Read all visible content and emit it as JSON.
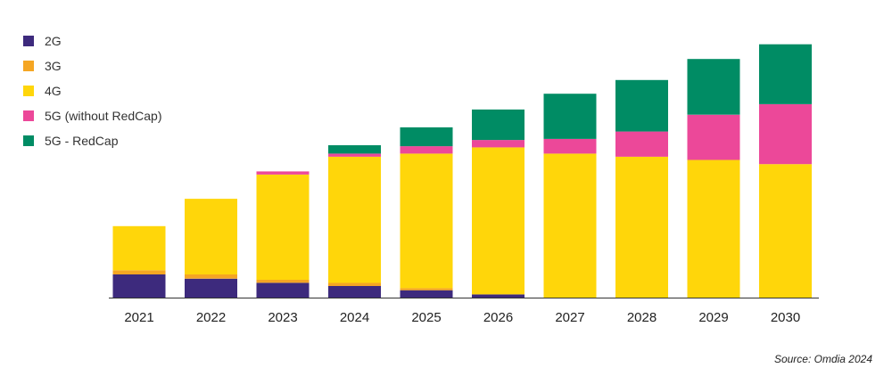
{
  "chart_data": {
    "type": "bar",
    "stacked": true,
    "categories": [
      "2021",
      "2022",
      "2023",
      "2024",
      "2025",
      "2026",
      "2027",
      "2028",
      "2029",
      "2030"
    ],
    "series": [
      {
        "name": "2G",
        "color": "#3d2a7d",
        "values": [
          22,
          18,
          14,
          11,
          7,
          3,
          0,
          0,
          0,
          0
        ]
      },
      {
        "name": "3G",
        "color": "#f5a623",
        "values": [
          4,
          4,
          3,
          3,
          2,
          0,
          0,
          0,
          0,
          0
        ]
      },
      {
        "name": "4G",
        "color": "#ffd60a",
        "values": [
          42,
          72,
          100,
          120,
          128,
          140,
          137,
          134,
          131,
          127
        ]
      },
      {
        "name": "5G (without RedCap)",
        "color": "#ec4899",
        "values": [
          0,
          0,
          3,
          3,
          7,
          7,
          14,
          24,
          43,
          57
        ]
      },
      {
        "name": "5G - RedCap",
        "color": "#008c64",
        "values": [
          0,
          0,
          0,
          8,
          18,
          29,
          43,
          49,
          53,
          57
        ]
      }
    ],
    "ylim": [
      0,
      245
    ],
    "grid": false,
    "legend_position": "top-left",
    "title": "",
    "xlabel": "",
    "ylabel": ""
  },
  "source": "Source: Omdia 2024"
}
